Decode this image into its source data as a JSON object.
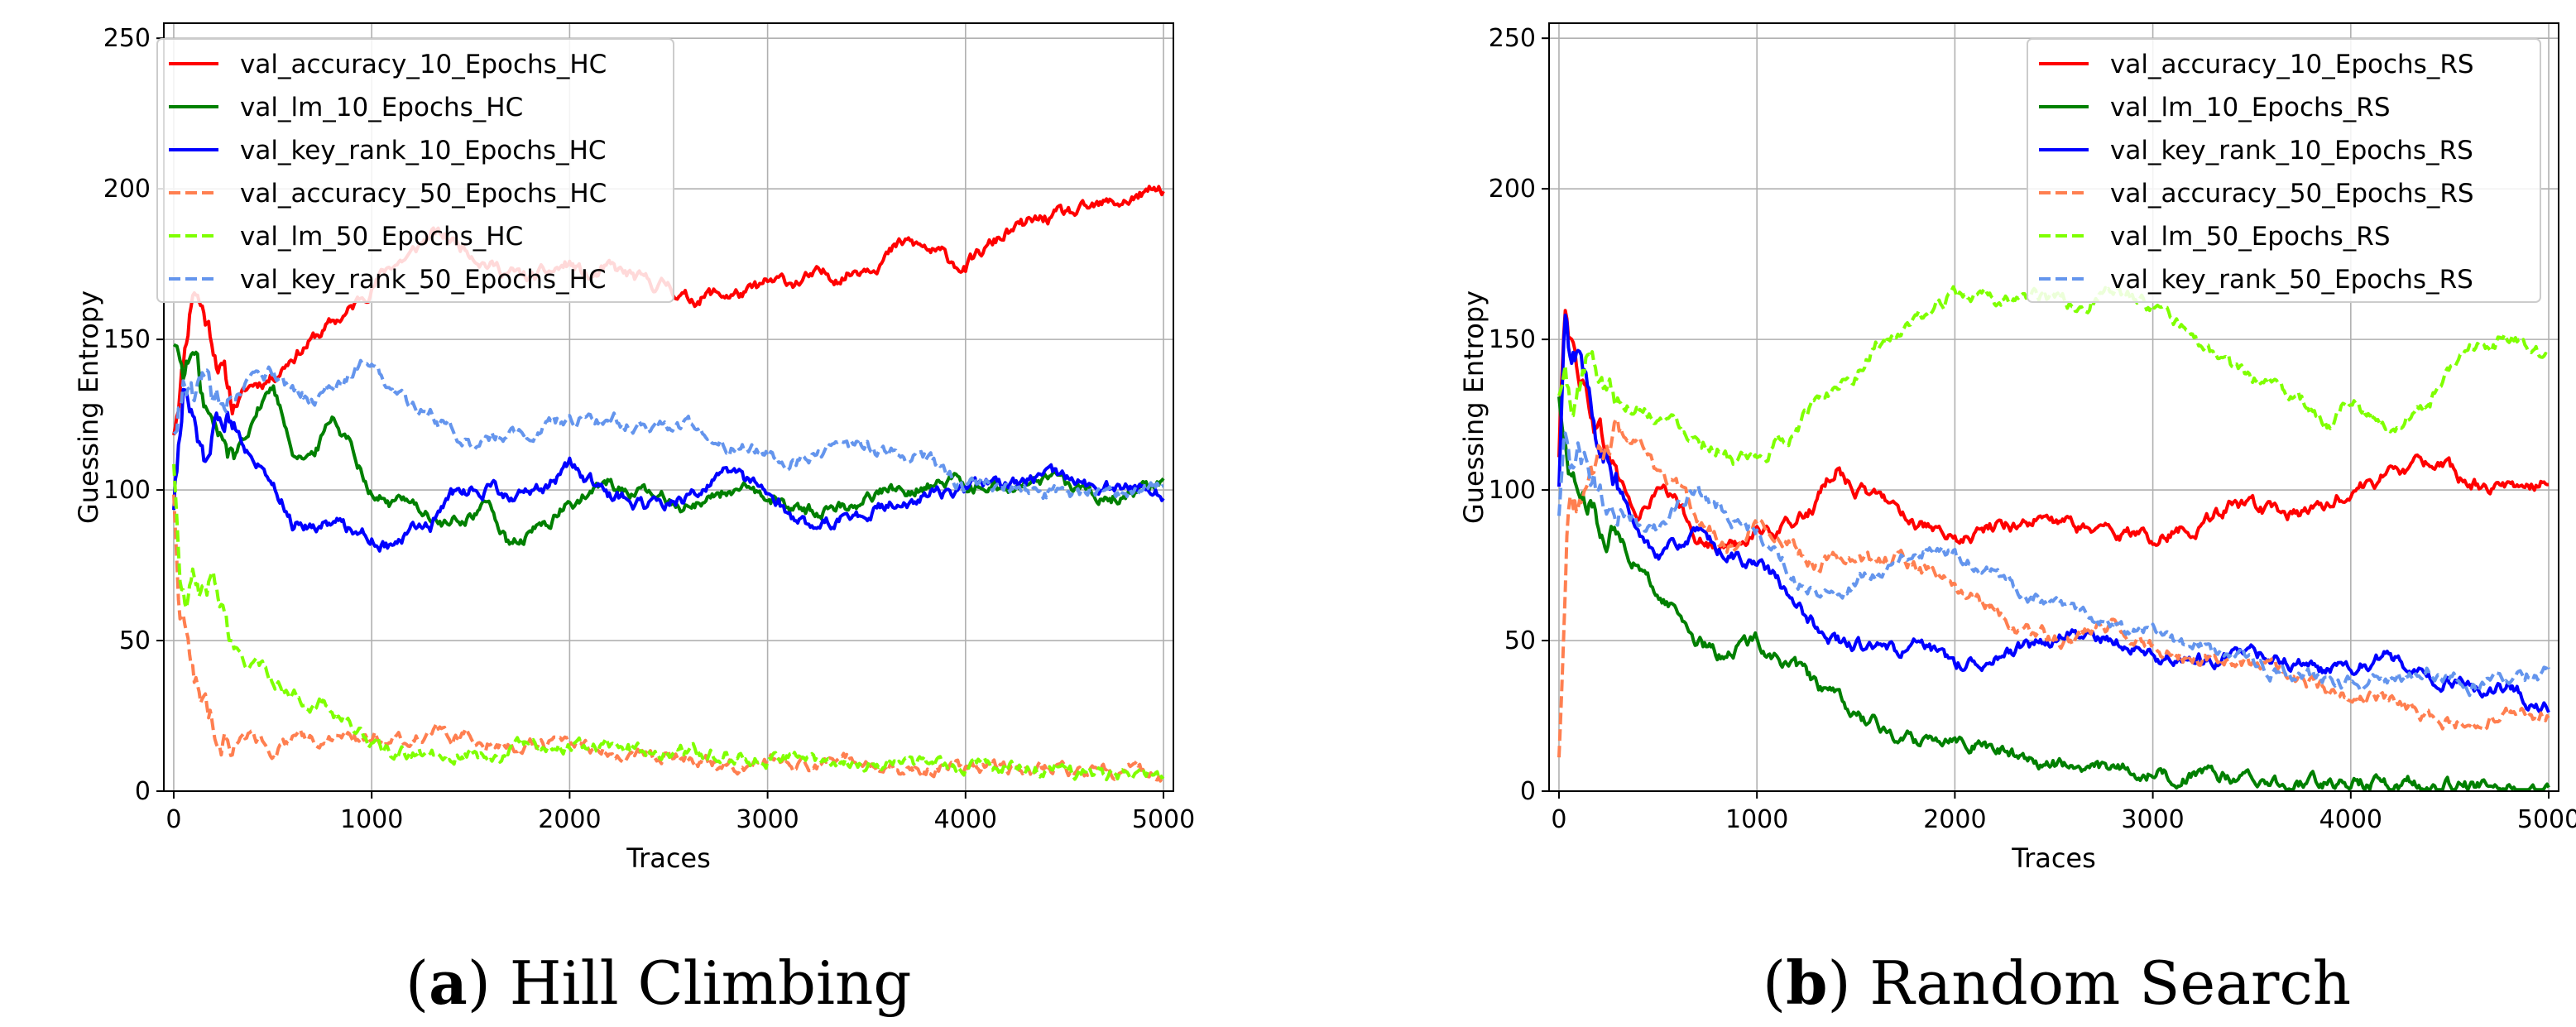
{
  "figure": {
    "captions": [
      {
        "letter": "a",
        "text": "Hill Climbing"
      },
      {
        "letter": "b",
        "text": "Random Search"
      }
    ]
  },
  "chart_data": [
    {
      "type": "line",
      "title": "",
      "xlabel": "Traces",
      "ylabel": "Guessing Entropy",
      "xlim": [
        -50,
        5050
      ],
      "ylim": [
        0,
        255
      ],
      "xticks": [
        0,
        1000,
        2000,
        3000,
        4000,
        5000
      ],
      "yticks": [
        0,
        50,
        100,
        150,
        200,
        250
      ],
      "grid": true,
      "legend_position": "top-left",
      "series": [
        {
          "name": "val_accuracy_10_Epochs_HC",
          "color": "#ff0000",
          "style": "solid",
          "x": [
            0,
            100,
            200,
            300,
            400,
            500,
            600,
            700,
            800,
            900,
            1000,
            1100,
            1200,
            1300,
            1400,
            1500,
            1600,
            1700,
            1800,
            1900,
            2000,
            2100,
            2200,
            2300,
            2400,
            2500,
            2600,
            2700,
            2800,
            2900,
            3000,
            3200,
            3400,
            3600,
            3700,
            3800,
            4000,
            4200,
            4400,
            4600,
            4800,
            5000
          ],
          "values": [
            120,
            170,
            150,
            128,
            135,
            138,
            145,
            150,
            155,
            160,
            168,
            175,
            178,
            185,
            183,
            180,
            175,
            172,
            170,
            172,
            175,
            170,
            173,
            171,
            168,
            168,
            163,
            165,
            165,
            165,
            168,
            170,
            172,
            178,
            182,
            180,
            174,
            185,
            190,
            192,
            196,
            200
          ]
        },
        {
          "name": "val_lm_10_Epochs_HC",
          "color": "#008000",
          "style": "solid",
          "x": [
            0,
            50,
            100,
            150,
            200,
            300,
            400,
            500,
            600,
            700,
            800,
            900,
            1000,
            1100,
            1200,
            1300,
            1400,
            1500,
            1600,
            1700,
            1800,
            1900,
            2000,
            2200,
            2400,
            2600,
            2800,
            3000,
            3200,
            3400,
            3600,
            3800,
            4000,
            4200,
            4400,
            4600,
            4800,
            5000
          ],
          "values": [
            150,
            140,
            145,
            130,
            120,
            110,
            125,
            135,
            115,
            110,
            125,
            115,
            100,
            95,
            98,
            90,
            88,
            92,
            95,
            80,
            85,
            90,
            95,
            102,
            98,
            95,
            100,
            97,
            93,
            95,
            100,
            102,
            103,
            100,
            102,
            100,
            98,
            103
          ]
        },
        {
          "name": "val_key_rank_10_Epochs_HC",
          "color": "#0000ff",
          "style": "solid",
          "x": [
            0,
            50,
            100,
            150,
            200,
            300,
            400,
            500,
            600,
            700,
            800,
            900,
            1000,
            1100,
            1200,
            1300,
            1400,
            1500,
            1600,
            1700,
            1800,
            1900,
            2000,
            2200,
            2400,
            2600,
            2800,
            3000,
            3200,
            3400,
            3600,
            3800,
            4000,
            4200,
            4400,
            4600,
            4800,
            5000
          ],
          "values": [
            95,
            135,
            120,
            110,
            118,
            125,
            110,
            105,
            90,
            88,
            90,
            87,
            85,
            82,
            86,
            88,
            98,
            100,
            102,
            96,
            98,
            102,
            108,
            98,
            95,
            98,
            105,
            98,
            88,
            90,
            95,
            98,
            100,
            102,
            104,
            102,
            100,
            98
          ]
        },
        {
          "name": "val_accuracy_50_Epochs_HC",
          "color": "#ff7f50",
          "style": "dashed",
          "x": [
            0,
            30,
            60,
            100,
            150,
            200,
            300,
            400,
            500,
            600,
            800,
            1000,
            1200,
            1400,
            1600,
            1800,
            2000,
            2200,
            2400,
            2600,
            2800,
            3000,
            3200,
            3400,
            3600,
            3800,
            4000,
            4200,
            4400,
            4600,
            4800,
            5000
          ],
          "values": [
            100,
            60,
            52,
            40,
            30,
            22,
            16,
            18,
            15,
            16,
            17,
            18,
            18,
            19,
            17,
            15,
            14,
            14,
            12,
            11,
            10,
            10,
            9,
            9,
            8,
            8,
            8,
            8,
            7,
            7,
            6,
            5
          ]
        },
        {
          "name": "val_lm_50_Epochs_HC",
          "color": "#7fff00",
          "style": "dashed",
          "x": [
            0,
            30,
            60,
            100,
            150,
            200,
            250,
            300,
            400,
            500,
            600,
            700,
            800,
            900,
            1000,
            1100,
            1200,
            1400,
            1600,
            1800,
            2000,
            2200,
            2400,
            2600,
            2800,
            3000,
            3200,
            3400,
            3600,
            3800,
            4000,
            4200,
            4400,
            4600,
            4800,
            5000
          ],
          "values": [
            110,
            70,
            60,
            68,
            65,
            70,
            60,
            45,
            42,
            38,
            32,
            30,
            28,
            22,
            15,
            12,
            12,
            13,
            12,
            15,
            16,
            15,
            14,
            13,
            12,
            12,
            11,
            10,
            9,
            9,
            8,
            8,
            7,
            6,
            5,
            5
          ]
        },
        {
          "name": "val_key_rank_50_Epochs_HC",
          "color": "#6495ed",
          "style": "dashed",
          "x": [
            0,
            50,
            100,
            150,
            200,
            300,
            400,
            500,
            600,
            700,
            800,
            900,
            1000,
            1100,
            1200,
            1300,
            1400,
            1500,
            1600,
            1700,
            1800,
            1900,
            2000,
            2200,
            2400,
            2600,
            2800,
            3000,
            3200,
            3400,
            3600,
            3800,
            4000,
            4200,
            4400,
            4600,
            4800,
            5000
          ],
          "values": [
            120,
            140,
            130,
            135,
            128,
            132,
            135,
            138,
            133,
            130,
            135,
            140,
            145,
            130,
            128,
            125,
            120,
            115,
            118,
            120,
            118,
            122,
            122,
            125,
            120,
            122,
            115,
            112,
            110,
            115,
            112,
            110,
            100,
            102,
            100,
            98,
            100,
            100
          ]
        }
      ]
    },
    {
      "type": "line",
      "title": "",
      "xlabel": "Traces",
      "ylabel": "Guessing Entropy",
      "xlim": [
        -50,
        5050
      ],
      "ylim": [
        0,
        255
      ],
      "xticks": [
        0,
        1000,
        2000,
        3000,
        4000,
        5000
      ],
      "yticks": [
        0,
        50,
        100,
        150,
        200,
        250
      ],
      "grid": true,
      "legend_position": "top-right",
      "series": [
        {
          "name": "val_accuracy_10_Epochs_RS",
          "color": "#ff0000",
          "style": "solid",
          "x": [
            0,
            30,
            60,
            100,
            150,
            200,
            300,
            400,
            500,
            600,
            700,
            800,
            900,
            1000,
            1100,
            1200,
            1300,
            1400,
            1500,
            1600,
            1700,
            1800,
            1900,
            2000,
            2200,
            2400,
            2600,
            2800,
            3000,
            3200,
            3400,
            3600,
            3800,
            4000,
            4200,
            4400,
            4600,
            4800,
            5000
          ],
          "values": [
            110,
            165,
            150,
            140,
            130,
            120,
            105,
            90,
            100,
            95,
            85,
            80,
            82,
            88,
            85,
            90,
            95,
            108,
            100,
            98,
            95,
            90,
            85,
            82,
            88,
            90,
            88,
            86,
            84,
            88,
            95,
            92,
            92,
            100,
            105,
            110,
            102,
            100,
            105
          ]
        },
        {
          "name": "val_lm_10_Epochs_RS",
          "color": "#008000",
          "style": "solid",
          "x": [
            0,
            30,
            60,
            100,
            150,
            200,
            300,
            400,
            500,
            600,
            700,
            800,
            900,
            1000,
            1100,
            1200,
            1300,
            1400,
            1500,
            1600,
            1700,
            1800,
            1900,
            2000,
            2200,
            2400,
            2600,
            2800,
            3000,
            3200,
            3400,
            3600,
            3800,
            4000,
            4200,
            4400,
            4600,
            4800,
            5000
          ],
          "values": [
            130,
            115,
            105,
            100,
            95,
            90,
            85,
            75,
            65,
            60,
            50,
            45,
            48,
            50,
            45,
            40,
            35,
            30,
            25,
            22,
            18,
            17,
            18,
            19,
            14,
            10,
            8,
            7,
            6,
            5,
            4,
            3,
            3,
            3,
            3,
            3,
            2,
            2,
            1
          ]
        },
        {
          "name": "val_key_rank_10_Epochs_RS",
          "color": "#0000ff",
          "style": "solid",
          "x": [
            0,
            30,
            60,
            100,
            150,
            200,
            300,
            400,
            500,
            600,
            700,
            800,
            900,
            1000,
            1100,
            1200,
            1300,
            1400,
            1500,
            1600,
            1700,
            1800,
            1900,
            2000,
            2200,
            2400,
            2600,
            2800,
            3000,
            3200,
            3400,
            3600,
            3800,
            4000,
            4200,
            4400,
            4600,
            4800,
            5000
          ],
          "values": [
            100,
            155,
            140,
            145,
            130,
            115,
            100,
            85,
            80,
            82,
            85,
            80,
            78,
            75,
            70,
            60,
            55,
            50,
            48,
            48,
            46,
            48,
            45,
            42,
            45,
            48,
            52,
            50,
            45,
            43,
            45,
            45,
            40,
            40,
            45,
            38,
            35,
            35,
            27
          ]
        },
        {
          "name": "val_accuracy_50_Epochs_RS",
          "color": "#ff7f50",
          "style": "dashed",
          "x": [
            0,
            20,
            40,
            60,
            100,
            150,
            200,
            300,
            400,
            500,
            600,
            700,
            800,
            900,
            1000,
            1100,
            1200,
            1300,
            1400,
            1500,
            1600,
            1700,
            1800,
            1900,
            2000,
            2200,
            2400,
            2600,
            2800,
            3000,
            3200,
            3400,
            3600,
            3800,
            4000,
            4200,
            4400,
            4600,
            4800,
            5000
          ],
          "values": [
            10,
            50,
            90,
            100,
            95,
            105,
            110,
            120,
            115,
            105,
            100,
            90,
            85,
            80,
            90,
            85,
            82,
            75,
            80,
            78,
            75,
            78,
            75,
            72,
            68,
            60,
            52,
            50,
            55,
            48,
            45,
            42,
            40,
            35,
            32,
            30,
            25,
            22,
            25,
            26
          ]
        },
        {
          "name": "val_lm_50_Epochs_RS",
          "color": "#7fff00",
          "style": "dashed",
          "x": [
            0,
            30,
            60,
            100,
            150,
            200,
            300,
            400,
            500,
            600,
            700,
            800,
            900,
            1000,
            1100,
            1200,
            1300,
            1400,
            1500,
            1600,
            1700,
            1800,
            1900,
            2000,
            2200,
            2400,
            2600,
            2800,
            3000,
            3200,
            3400,
            3600,
            3800,
            3900,
            4000,
            4100,
            4200,
            4300,
            4400,
            4500,
            4600,
            4800,
            5000
          ],
          "values": [
            130,
            140,
            125,
            135,
            145,
            140,
            130,
            128,
            125,
            122,
            118,
            115,
            110,
            108,
            115,
            120,
            130,
            135,
            140,
            148,
            150,
            155,
            160,
            165,
            162,
            165,
            160,
            168,
            160,
            150,
            140,
            135,
            128,
            122,
            130,
            125,
            120,
            125,
            130,
            140,
            148,
            150,
            145
          ]
        },
        {
          "name": "val_key_rank_50_Epochs_RS",
          "color": "#6495ed",
          "style": "dashed",
          "x": [
            0,
            30,
            60,
            100,
            150,
            200,
            300,
            400,
            500,
            600,
            700,
            800,
            900,
            1000,
            1100,
            1200,
            1300,
            1400,
            1500,
            1600,
            1700,
            1800,
            1900,
            2000,
            2200,
            2400,
            2600,
            2800,
            3000,
            3200,
            3400,
            3600,
            3800,
            4000,
            4200,
            4400,
            4600,
            4800,
            5000
          ],
          "values": [
            90,
            115,
            100,
            110,
            105,
            100,
            95,
            90,
            88,
            95,
            100,
            95,
            90,
            85,
            80,
            70,
            68,
            65,
            70,
            72,
            75,
            78,
            80,
            78,
            72,
            65,
            60,
            55,
            52,
            48,
            45,
            40,
            38,
            35,
            38,
            40,
            35,
            38,
            40
          ]
        }
      ]
    }
  ]
}
